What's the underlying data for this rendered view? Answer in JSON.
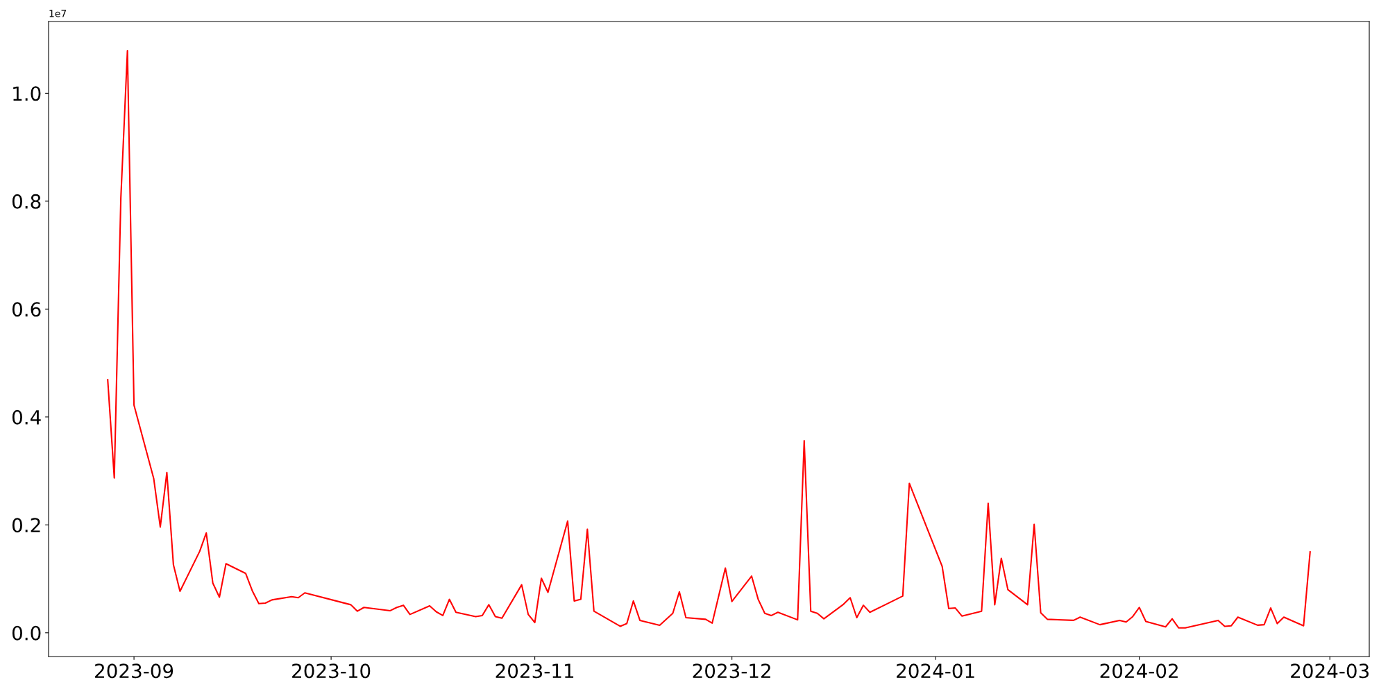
{
  "chart_data": {
    "type": "line",
    "x": [
      "2023-08-28",
      "2023-08-29",
      "2023-08-30",
      "2023-08-31",
      "2023-09-01",
      "2023-09-04",
      "2023-09-05",
      "2023-09-06",
      "2023-09-07",
      "2023-09-08",
      "2023-09-11",
      "2023-09-12",
      "2023-09-13",
      "2023-09-14",
      "2023-09-15",
      "2023-09-18",
      "2023-09-19",
      "2023-09-20",
      "2023-09-21",
      "2023-09-22",
      "2023-09-25",
      "2023-09-26",
      "2023-09-27",
      "2023-10-04",
      "2023-10-05",
      "2023-10-06",
      "2023-10-10",
      "2023-10-11",
      "2023-10-12",
      "2023-10-13",
      "2023-10-16",
      "2023-10-17",
      "2023-10-18",
      "2023-10-19",
      "2023-10-20",
      "2023-10-23",
      "2023-10-24",
      "2023-10-25",
      "2023-10-26",
      "2023-10-27",
      "2023-10-30",
      "2023-10-31",
      "2023-11-01",
      "2023-11-02",
      "2023-11-03",
      "2023-11-06",
      "2023-11-07",
      "2023-11-08",
      "2023-11-09",
      "2023-11-10",
      "2023-11-14",
      "2023-11-15",
      "2023-11-16",
      "2023-11-17",
      "2023-11-20",
      "2023-11-22",
      "2023-11-23",
      "2023-11-24",
      "2023-11-27",
      "2023-11-28",
      "2023-11-29",
      "2023-11-30",
      "2023-12-01",
      "2023-12-04",
      "2023-12-05",
      "2023-12-06",
      "2023-12-07",
      "2023-12-08",
      "2023-12-11",
      "2023-12-12",
      "2023-12-13",
      "2023-12-14",
      "2023-12-15",
      "2023-12-18",
      "2023-12-19",
      "2023-12-20",
      "2023-12-21",
      "2023-12-22",
      "2023-12-27",
      "2023-12-28",
      "2024-01-02",
      "2024-01-03",
      "2024-01-04",
      "2024-01-05",
      "2024-01-08",
      "2024-01-09",
      "2024-01-10",
      "2024-01-11",
      "2024-01-12",
      "2024-01-15",
      "2024-01-16",
      "2024-01-17",
      "2024-01-18",
      "2024-01-22",
      "2024-01-23",
      "2024-01-26",
      "2024-01-29",
      "2024-01-30",
      "2024-01-31",
      "2024-02-01",
      "2024-02-02",
      "2024-02-05",
      "2024-02-06",
      "2024-02-07",
      "2024-02-08",
      "2024-02-13",
      "2024-02-14",
      "2024-02-15",
      "2024-02-16",
      "2024-02-19",
      "2024-02-20",
      "2024-02-21",
      "2024-02-22",
      "2024-02-23",
      "2024-02-26",
      "2024-02-27"
    ],
    "series": [
      {
        "color": "#ff0000",
        "values": [
          0.469,
          0.287,
          0.806,
          1.079,
          0.422,
          0.286,
          0.196,
          0.297,
          0.126,
          0.077,
          0.151,
          0.185,
          0.092,
          0.066,
          0.128,
          0.11,
          0.078,
          0.054,
          0.055,
          0.061,
          0.067,
          0.065,
          0.074,
          0.052,
          0.04,
          0.047,
          0.041,
          0.047,
          0.051,
          0.034,
          0.05,
          0.039,
          0.032,
          0.062,
          0.038,
          0.03,
          0.032,
          0.052,
          0.03,
          0.027,
          0.089,
          0.034,
          0.019,
          0.101,
          0.075,
          0.207,
          0.059,
          0.062,
          0.192,
          0.04,
          0.012,
          0.017,
          0.059,
          0.023,
          0.014,
          0.036,
          0.076,
          0.028,
          0.025,
          0.018,
          0.069,
          0.12,
          0.058,
          0.105,
          0.062,
          0.036,
          0.032,
          0.038,
          0.024,
          0.356,
          0.04,
          0.036,
          0.026,
          0.053,
          0.065,
          0.028,
          0.051,
          0.038,
          0.068,
          0.277,
          0.123,
          0.045,
          0.046,
          0.031,
          0.04,
          0.24,
          0.052,
          0.138,
          0.08,
          0.052,
          0.201,
          0.037,
          0.025,
          0.023,
          0.029,
          0.015,
          0.023,
          0.02,
          0.03,
          0.047,
          0.021,
          0.011,
          0.026,
          0.009,
          0.009,
          0.023,
          0.012,
          0.013,
          0.029,
          0.014,
          0.015,
          0.046,
          0.017,
          0.029,
          0.013,
          0.15
        ]
      }
    ],
    "xlim": [
      "2023-08-19",
      "2024-03-07"
    ],
    "xticks": [
      "2023-09",
      "2023-10",
      "2023-11",
      "2023-12",
      "2024-01",
      "2024-02",
      "2024-03"
    ],
    "ylim": [
      -0.044,
      1.133
    ],
    "yticks": [
      {
        "value": 0,
        "label": "0.0"
      },
      0.2,
      0.4,
      0.6,
      0.8,
      {
        "value": 1,
        "label": "1.0"
      }
    ],
    "annotations": [
      "1e7"
    ],
    "grid": false,
    "line_style": "solid"
  }
}
